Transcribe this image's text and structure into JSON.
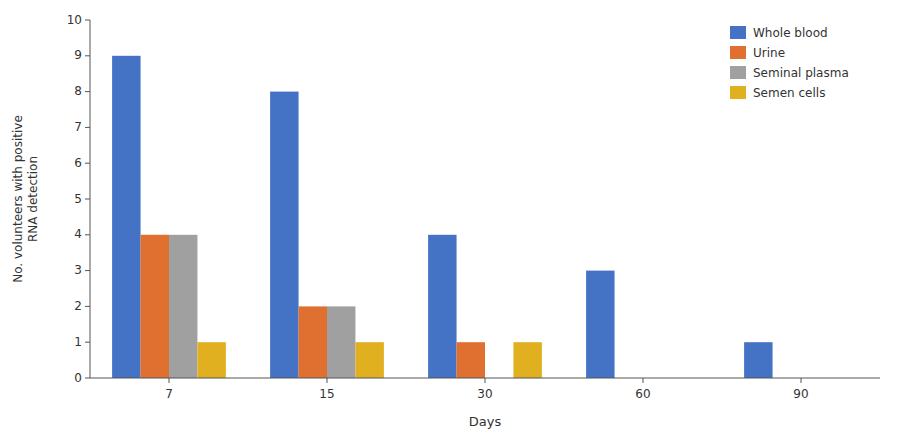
{
  "chart_data": {
    "type": "bar",
    "xlabel": "Days",
    "ylabel": "No. volunteers with positive\nRNA detection",
    "categories": [
      "7",
      "15",
      "30",
      "60",
      "90"
    ],
    "series": [
      {
        "name": "Whole blood",
        "color": "#4472C4",
        "values": [
          9,
          8,
          4,
          3,
          1
        ]
      },
      {
        "name": "Urine",
        "color": "#E07030",
        "values": [
          4,
          2,
          1,
          0,
          0
        ]
      },
      {
        "name": "Seminal plasma",
        "color": "#A0A0A0",
        "values": [
          4,
          2,
          0,
          0,
          0
        ]
      },
      {
        "name": "Semen cells",
        "color": "#E0B020",
        "values": [
          1,
          1,
          1,
          0,
          0
        ]
      }
    ],
    "ylim": [
      0,
      10
    ],
    "yticks": [
      0,
      1,
      2,
      3,
      4,
      5,
      6,
      7,
      8,
      9,
      10
    ],
    "grid": false,
    "legend": "upper right"
  }
}
